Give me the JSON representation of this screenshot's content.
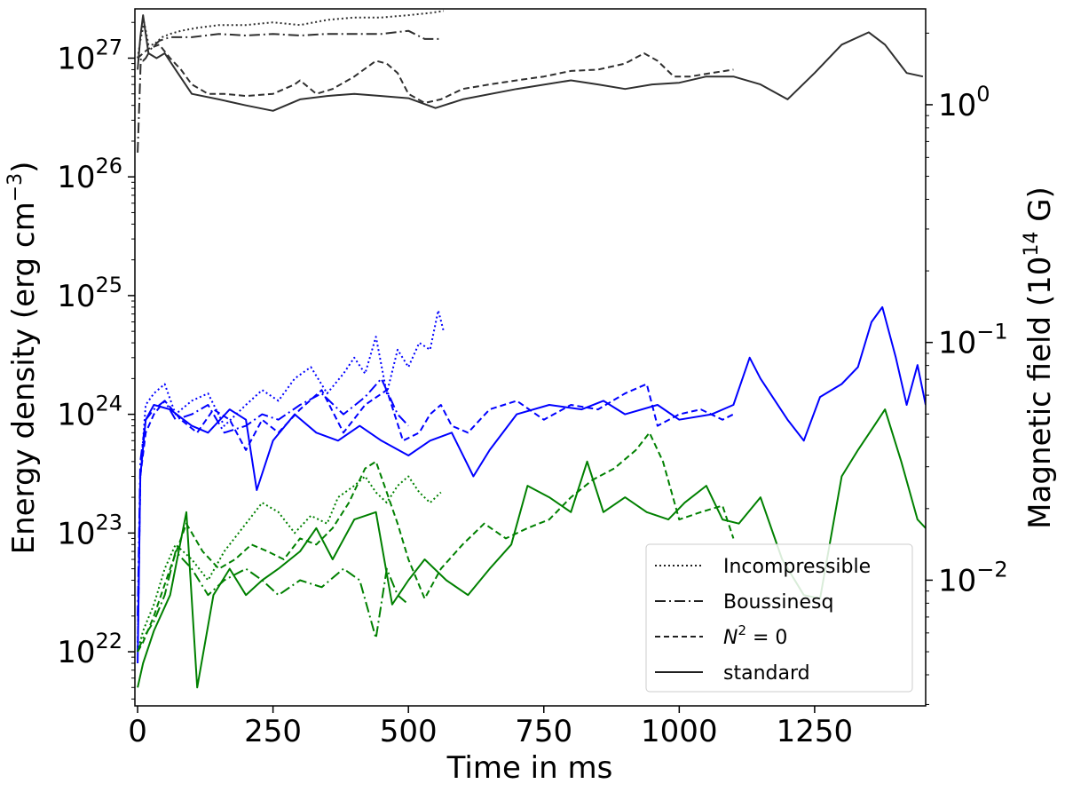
{
  "chart_data": {
    "type": "line",
    "xlabel": "Time in ms",
    "ylabel_left": "Energy density (erg cm$^{-3}$)",
    "ylabel_left_parts": [
      "Energy density (erg cm",
      "−3",
      ")"
    ],
    "ylabel_right": "Magnetic field ($10^{14}$ G)",
    "ylabel_right_parts": [
      "Magnetic field (10",
      "14",
      " G)"
    ],
    "xlim": [
      -5,
      1455
    ],
    "ylim_left": [
      3.5e+21,
      2.6e+27
    ],
    "ylim_left_scale": "log",
    "ylim_right": [
      0.00296,
      2.53
    ],
    "ylim_right_scale": "log",
    "x_ticks": [
      0,
      250,
      500,
      750,
      1000,
      1250
    ],
    "x_tick_labels": [
      "0",
      "250",
      "500",
      "750",
      "1000",
      "1250"
    ],
    "y_left_ticks": [
      {
        "value": 1e+22,
        "base": "10",
        "exp": "22"
      },
      {
        "value": 1e+23,
        "base": "10",
        "exp": "23"
      },
      {
        "value": 1e+24,
        "base": "10",
        "exp": "24"
      },
      {
        "value": 1e+25,
        "base": "10",
        "exp": "25"
      },
      {
        "value": 1e+26,
        "base": "10",
        "exp": "26"
      },
      {
        "value": 1e+27,
        "base": "10",
        "exp": "27"
      }
    ],
    "y_right_ticks": [
      {
        "value": 0.01,
        "base": "10",
        "exp": "−2"
      },
      {
        "value": 0.1,
        "base": "10",
        "exp": "−1"
      },
      {
        "value": 1,
        "base": "10",
        "exp": "0"
      }
    ],
    "grid": false,
    "legend_position": "bottom-right",
    "legend": [
      {
        "label": "Incompressible",
        "style": "dotted"
      },
      {
        "label": "Boussinesq",
        "style": "dashdot"
      },
      {
        "label": "N$^2 = 0$",
        "label_parts": [
          "N",
          "2",
          " = 0"
        ],
        "style": "dashed"
      },
      {
        "label": "standard",
        "style": "solid"
      }
    ],
    "colors": {
      "black_series": "#2f2f2f",
      "blue_series": "#0000ff",
      "green_series": "#008000"
    },
    "series": [
      {
        "color": "black",
        "style": "dotted",
        "axis": "left",
        "x": [
          0,
          5,
          12,
          20,
          30,
          45,
          60,
          80,
          110,
          150,
          200,
          250,
          300,
          350,
          400,
          450,
          500,
          540,
          565
        ],
        "y": [
          1e+27,
          1.4e+27,
          2e+27,
          1.3e+27,
          1.3e+27,
          1.5e+27,
          1.6e+27,
          1.7e+27,
          1.8e+27,
          1.9e+27,
          1.9e+27,
          2e+27,
          1.9e+27,
          2.1e+27,
          2.2e+27,
          2.2e+27,
          2.3e+27,
          2.4e+27,
          2.5e+27
        ]
      },
      {
        "color": "black",
        "style": "dashdot",
        "axis": "left",
        "x": [
          0,
          3,
          6,
          10,
          15,
          25,
          40,
          60,
          100,
          150,
          200,
          250,
          300,
          350,
          400,
          450,
          500,
          530,
          560
        ],
        "y": [
          1.6e+26,
          4e+26,
          1e+27,
          9.5e+26,
          1e+27,
          1.2e+27,
          1.4e+27,
          1.5e+27,
          1.5e+27,
          1.6e+27,
          1.55e+27,
          1.6e+27,
          1.55e+27,
          1.6e+27,
          1.6e+27,
          1.6e+27,
          1.7e+27,
          1.45e+27,
          1.45e+27
        ]
      },
      {
        "color": "black",
        "style": "dashed",
        "axis": "left",
        "x": [
          0,
          10,
          20,
          40,
          60,
          80,
          100,
          130,
          160,
          200,
          250,
          290,
          300,
          330,
          360,
          400,
          440,
          460,
          480,
          500,
          530,
          560,
          600,
          650,
          700,
          750,
          800,
          850,
          900,
          935,
          960,
          990,
          1020,
          1060,
          1100
        ],
        "y": [
          1e+27,
          1.1e+27,
          1.2e+27,
          1.3e+27,
          1e+27,
          8e+26,
          6e+26,
          5e+26,
          5e+26,
          4.8e+26,
          5e+26,
          6e+26,
          6.5e+26,
          5e+26,
          5.5e+26,
          7e+26,
          9.5e+26,
          9e+26,
          7.5e+26,
          5e+26,
          4.2e+26,
          4.5e+26,
          5.5e+26,
          6e+26,
          6.5e+26,
          7e+26,
          7.8e+26,
          8e+26,
          9e+26,
          1.1e+27,
          9.5e+26,
          7e+26,
          7e+26,
          7.5e+26,
          8e+26
        ]
      },
      {
        "color": "black",
        "style": "solid",
        "axis": "left",
        "x": [
          0,
          5,
          10,
          15,
          20,
          35,
          50,
          70,
          100,
          150,
          200,
          250,
          300,
          350,
          400,
          450,
          500,
          550,
          600,
          700,
          800,
          850,
          900,
          950,
          1000,
          1050,
          1100,
          1150,
          1200,
          1250,
          1300,
          1350,
          1380,
          1420,
          1450
        ],
        "y": [
          8e+26,
          1.5e+27,
          2.3e+27,
          1.6e+27,
          1.1e+27,
          1e+27,
          1.1e+27,
          8e+26,
          5e+26,
          4.5e+26,
          4e+26,
          3.6e+26,
          4.5e+26,
          4.8e+26,
          5e+26,
          4.8e+26,
          4.6e+26,
          3.8e+26,
          4.5e+26,
          5.5e+26,
          6.5e+26,
          6e+26,
          5.5e+26,
          6e+26,
          6.2e+26,
          7e+26,
          7e+26,
          6e+26,
          4.5e+26,
          7.5e+26,
          1.3e+27,
          1.65e+27,
          1.3e+27,
          7.5e+26,
          7e+26
        ]
      },
      {
        "color": "blue",
        "style": "dotted",
        "axis": "left",
        "x": [
          0,
          5,
          15,
          30,
          50,
          70,
          100,
          130,
          160,
          200,
          230,
          260,
          290,
          320,
          350,
          380,
          400,
          420,
          440,
          460,
          480,
          500,
          520,
          540,
          555,
          565
        ],
        "y": [
          1e+22,
          3e+23,
          1.2e+24,
          1.5e+24,
          1.8e+24,
          1e+24,
          1.3e+24,
          1.5e+24,
          8e+23,
          1.2e+24,
          1.6e+24,
          1.3e+24,
          2e+24,
          2.5e+24,
          1.5e+24,
          2.2e+24,
          3e+24,
          2.2e+24,
          4.5e+24,
          1.5e+24,
          3.5e+24,
          2.5e+24,
          4e+24,
          3.5e+24,
          7.5e+24,
          5e+24
        ]
      },
      {
        "color": "blue",
        "style": "dashdot",
        "axis": "left",
        "x": [
          0,
          5,
          15,
          30,
          50,
          70,
          100,
          130,
          160,
          200,
          230,
          260,
          300,
          340,
          380,
          420,
          450,
          480,
          500
        ],
        "y": [
          2e+22,
          4e+23,
          9e+23,
          1.1e+24,
          1.3e+24,
          9e+23,
          1e+24,
          1.2e+24,
          7e+23,
          8e+23,
          1e+24,
          9e+23,
          1.2e+24,
          1.5e+24,
          1e+24,
          1.4e+24,
          2e+24,
          1e+24,
          8e+23
        ]
      },
      {
        "color": "blue",
        "style": "dashed",
        "axis": "left",
        "x": [
          0,
          5,
          15,
          30,
          50,
          80,
          110,
          140,
          170,
          200,
          230,
          260,
          300,
          340,
          380,
          420,
          460,
          490,
          520,
          540,
          560,
          580,
          610,
          650,
          700,
          750,
          800,
          850,
          900,
          940,
          960,
          1000,
          1040,
          1080,
          1100
        ],
        "y": [
          1e+22,
          3e+23,
          7e+23,
          1e+24,
          1.3e+24,
          9e+23,
          7e+23,
          1.1e+24,
          9e+23,
          5e+23,
          9e+23,
          7e+23,
          1.1e+24,
          1.6e+24,
          7e+23,
          1.2e+24,
          1.6e+24,
          6e+23,
          7e+23,
          1e+24,
          1.2e+24,
          8e+23,
          7e+23,
          1.1e+24,
          1.3e+24,
          9e+23,
          1.2e+24,
          1.1e+24,
          1.5e+24,
          1.8e+24,
          8e+23,
          1e+24,
          1.1e+24,
          9e+23,
          1e+24
        ]
      },
      {
        "color": "blue",
        "style": "solid",
        "axis": "left",
        "x": [
          0,
          5,
          15,
          30,
          60,
          100,
          130,
          170,
          200,
          220,
          250,
          290,
          330,
          370,
          410,
          450,
          500,
          540,
          580,
          620,
          650,
          700,
          760,
          820,
          860,
          900,
          960,
          1000,
          1060,
          1100,
          1130,
          1150,
          1200,
          1230,
          1260,
          1300,
          1330,
          1355,
          1375,
          1400,
          1420,
          1440,
          1455
        ],
        "y": [
          8e+21,
          3e+23,
          9e+23,
          1.2e+24,
          1.1e+24,
          8e+23,
          7e+23,
          1.1e+24,
          9e+23,
          2.3e+23,
          6e+23,
          1e+24,
          7e+23,
          6e+23,
          8e+23,
          6e+23,
          4.5e+23,
          6e+23,
          7e+23,
          3e+23,
          5e+23,
          1e+24,
          1.2e+24,
          1.1e+24,
          1.3e+24,
          1e+24,
          1.2e+24,
          9e+23,
          1e+24,
          1.2e+24,
          3e+24,
          2e+24,
          9e+23,
          6e+23,
          1.4e+24,
          1.8e+24,
          2.5e+24,
          6e+24,
          8e+24,
          3e+24,
          1.2e+24,
          2.6e+24,
          1.2e+24
        ]
      },
      {
        "color": "green",
        "style": "dotted",
        "axis": "left",
        "x": [
          0,
          10,
          30,
          50,
          70,
          100,
          130,
          160,
          200,
          230,
          260,
          290,
          320,
          350,
          370,
          400,
          420,
          440,
          460,
          480,
          500,
          520,
          540,
          560
        ],
        "y": [
          1e+22,
          1.5e+22,
          2.5e+22,
          5e+22,
          8e+22,
          6e+22,
          4e+22,
          7e+22,
          1.2e+23,
          1.8e+23,
          1.5e+23,
          1e+23,
          1.4e+23,
          1.2e+23,
          2e+23,
          2.5e+23,
          3e+23,
          2.2e+23,
          1.8e+23,
          2.5e+23,
          3e+23,
          2.2e+23,
          1.8e+23,
          2.2e+23
        ]
      },
      {
        "color": "green",
        "style": "dashdot",
        "axis": "left",
        "x": [
          0,
          10,
          30,
          50,
          70,
          100,
          130,
          160,
          200,
          230,
          260,
          300,
          340,
          380,
          410,
          440,
          460,
          480,
          500
        ],
        "y": [
          1e+22,
          1.3e+22,
          1.8e+22,
          3e+22,
          7e+22,
          5e+22,
          3e+22,
          4e+22,
          5e+22,
          4e+22,
          3e+22,
          4e+22,
          3.5e+22,
          5e+22,
          4e+22,
          1.3e+22,
          5e+22,
          3e+22,
          2.5e+22
        ]
      },
      {
        "color": "green",
        "style": "dashed",
        "axis": "left",
        "x": [
          0,
          10,
          30,
          60,
          90,
          120,
          150,
          180,
          210,
          240,
          270,
          300,
          330,
          360,
          390,
          420,
          440,
          460,
          480,
          500,
          530,
          560,
          600,
          640,
          680,
          720,
          760,
          800,
          840,
          880,
          920,
          945,
          970,
          1000,
          1040,
          1080,
          1100
        ],
        "y": [
          1e+22,
          1.2e+22,
          2e+22,
          5e+22,
          1.2e+23,
          7e+22,
          5e+22,
          6e+22,
          8e+22,
          7e+22,
          6e+22,
          9e+22,
          8e+22,
          1.1e+23,
          1.8e+23,
          3.5e+23,
          4e+23,
          2.2e+23,
          1.2e+23,
          6e+22,
          2.8e+22,
          5e+22,
          8e+22,
          1.2e+23,
          9e+22,
          1.1e+23,
          1.3e+23,
          2e+23,
          2.8e+23,
          3.5e+23,
          5e+23,
          7e+23,
          4e+23,
          1.3e+23,
          1.5e+23,
          1.7e+23,
          9e+22
        ]
      },
      {
        "color": "green",
        "style": "solid",
        "axis": "left",
        "x": [
          0,
          10,
          30,
          60,
          90,
          110,
          140,
          170,
          200,
          230,
          260,
          300,
          330,
          360,
          400,
          440,
          470,
          500,
          530,
          570,
          610,
          650,
          690,
          720,
          760,
          800,
          830,
          860,
          900,
          940,
          980,
          1010,
          1050,
          1080,
          1110,
          1150,
          1190,
          1230,
          1260,
          1300,
          1330,
          1360,
          1380,
          1410,
          1440,
          1455
        ],
        "y": [
          5e+21,
          8e+21,
          1.5e+22,
          3e+22,
          1.5e+23,
          5e+21,
          3e+22,
          5e+22,
          3e+22,
          4e+22,
          5e+22,
          7e+22,
          1.1e+23,
          6e+22,
          1.3e+23,
          1.5e+23,
          2.5e+22,
          4e+22,
          6e+22,
          4e+22,
          3e+22,
          5e+22,
          8e+22,
          2.5e+23,
          2e+23,
          1.5e+23,
          4e+23,
          1.5e+23,
          2e+23,
          1.5e+23,
          1.3e+23,
          1.8e+23,
          2.5e+23,
          1.3e+23,
          1.2e+23,
          2e+23,
          6e+22,
          3e+22,
          2.8e+22,
          3e+23,
          5e+23,
          8e+23,
          1.1e+24,
          4e+23,
          1.3e+23,
          1.1e+23
        ]
      }
    ]
  }
}
